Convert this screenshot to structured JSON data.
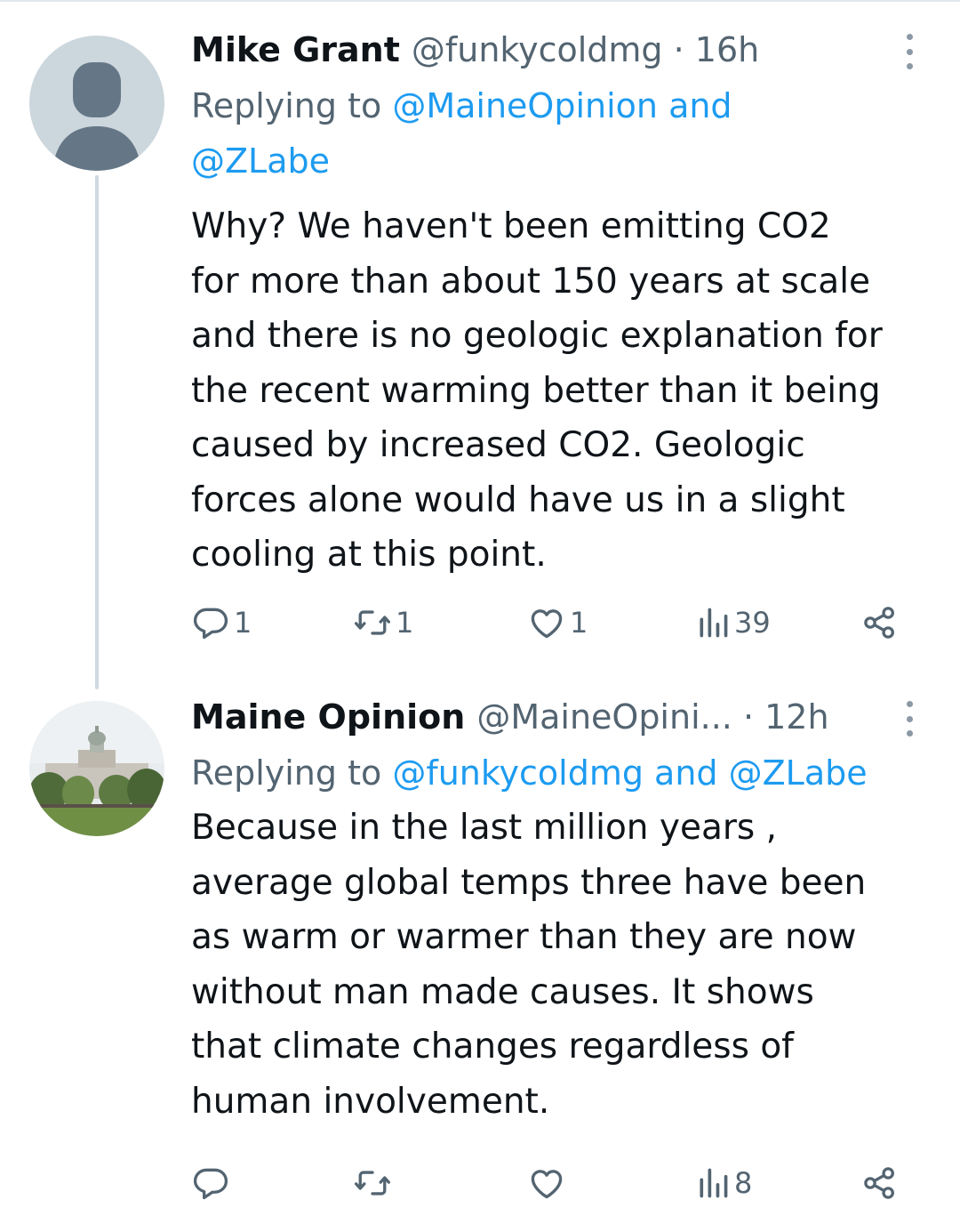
{
  "tweets": [
    {
      "author_name": "Mike Grant",
      "handle_time": "@funkycoldmg · 16h",
      "replying_prefix": "Replying to",
      "replying_links": "@MaineOpinion and",
      "replying_links_2": "@ZLabe",
      "body": "Why?  We haven't been emitting CO2\nfor more than about 150 years at scale\nand there is no geologic explanation for\nthe recent warming better than it being\ncaused by increased CO2.  Geologic\nforces alone would have us in a slight\ncooling at this point.",
      "avatar_icon": "default-person-icon",
      "actions": {
        "replies": "1",
        "reposts": "1",
        "likes": "1",
        "views": "39"
      }
    },
    {
      "author_name": "Maine Opinion",
      "handle_time": "@MaineOpini...  · 12h",
      "replying_prefix": "Replying to",
      "replying_links": "@funkycoldmg and @ZLabe",
      "body": "Because in the last million years ,\naverage global temps three have been\nas warm or warmer than they are now\nwithout man made causes. It shows\nthat climate changes regardless of\nhuman involvement.",
      "avatar_icon": "state-house-photo",
      "actions": {
        "replies": "",
        "reposts": "",
        "likes": "",
        "views": "8"
      }
    }
  ],
  "colors": {
    "text": "#0f1419",
    "secondary": "#536471",
    "link": "#1d9bf0",
    "thread_line": "#cfd9de"
  }
}
